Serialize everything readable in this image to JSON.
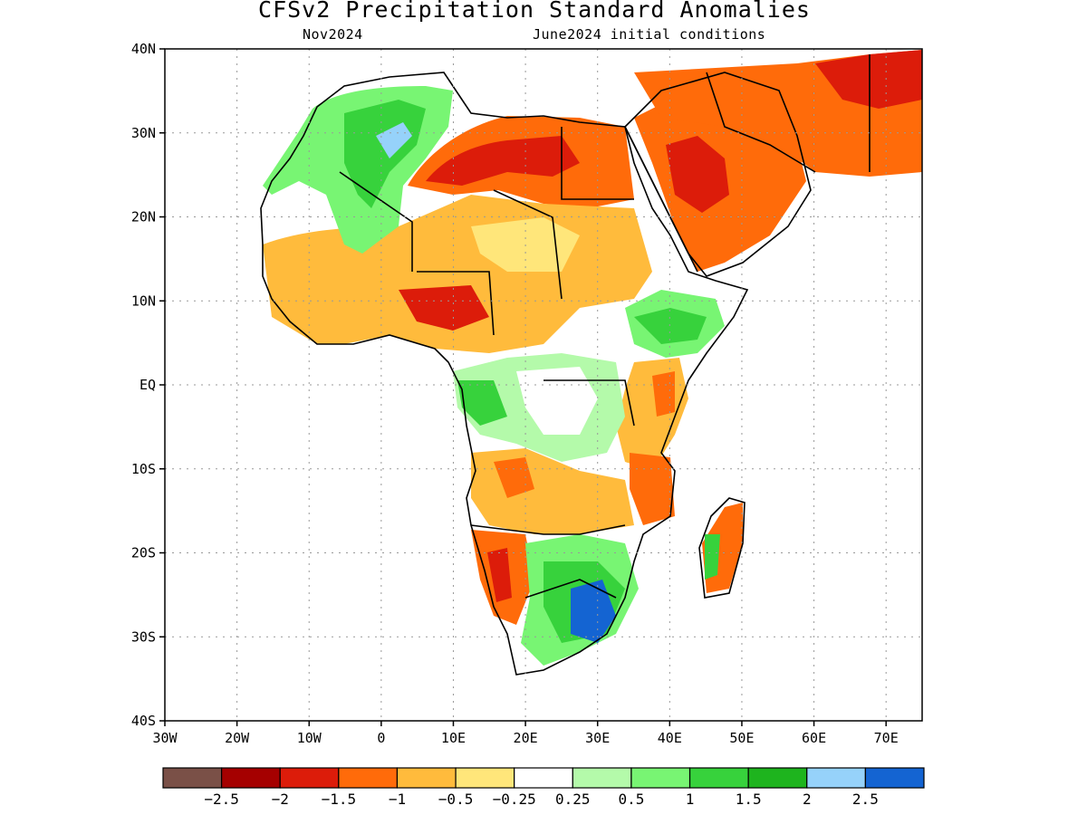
{
  "title": "CFSv2 Precipitation Standard Anomalies",
  "subtitle_left": "Nov2024",
  "subtitle_right": "June2024 initial conditions",
  "map": {
    "lon_range": [
      -30,
      75
    ],
    "lat_range": [
      -40,
      40
    ],
    "lat_ticks": [
      {
        "v": 40,
        "label": "40N"
      },
      {
        "v": 30,
        "label": "30N"
      },
      {
        "v": 20,
        "label": "20N"
      },
      {
        "v": 10,
        "label": "10N"
      },
      {
        "v": 0,
        "label": "EQ"
      },
      {
        "v": -10,
        "label": "10S"
      },
      {
        "v": -20,
        "label": "20S"
      },
      {
        "v": -30,
        "label": "30S"
      },
      {
        "v": -40,
        "label": "40S"
      }
    ],
    "lon_ticks": [
      {
        "v": -30,
        "label": "30W"
      },
      {
        "v": -20,
        "label": "20W"
      },
      {
        "v": -10,
        "label": "10W"
      },
      {
        "v": 0,
        "label": "0"
      },
      {
        "v": 10,
        "label": "10E"
      },
      {
        "v": 20,
        "label": "20E"
      },
      {
        "v": 30,
        "label": "30E"
      },
      {
        "v": 40,
        "label": "40E"
      },
      {
        "v": 50,
        "label": "50E"
      },
      {
        "v": 60,
        "label": "60E"
      },
      {
        "v": 70,
        "label": "70E"
      }
    ],
    "grid": "dotted"
  },
  "colorbar": {
    "colors": [
      "#7a5047",
      "#a50000",
      "#dc1c0a",
      "#ff6b0a",
      "#ffbb3c",
      "#ffe67a",
      "#ffffff",
      "#b4faaa",
      "#78f573",
      "#37d23c",
      "#1eb41e",
      "#96d2fa",
      "#1464d2"
    ],
    "labels": [
      "−2.5",
      "−2",
      "−1.5",
      "−1",
      "−0.5",
      "−0.25",
      "0.25",
      "0.5",
      "1",
      "1.5",
      "2",
      "2.5"
    ]
  }
}
